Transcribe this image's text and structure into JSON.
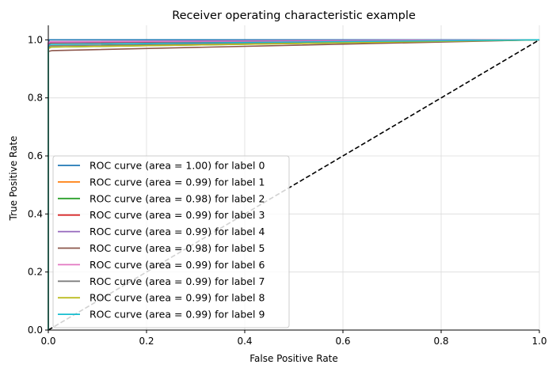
{
  "chart_data": {
    "type": "line",
    "title": "Receiver operating characteristic example",
    "xlabel": "False Positive Rate",
    "ylabel": "True Positive Rate",
    "xlim": [
      0.0,
      1.0
    ],
    "ylim": [
      0.0,
      1.05
    ],
    "xticks": [
      0.0,
      0.2,
      0.4,
      0.6,
      0.8,
      1.0
    ],
    "yticks": [
      0.0,
      0.2,
      0.4,
      0.6,
      0.8,
      1.0
    ],
    "xtick_labels": [
      "0.0",
      "0.2",
      "0.4",
      "0.6",
      "0.8",
      "1.0"
    ],
    "ytick_labels": [
      "0.0",
      "0.2",
      "0.4",
      "0.6",
      "0.8",
      "1.0"
    ],
    "grid": true,
    "legend_position": "lower-left",
    "diagonal": {
      "x": [
        0,
        1
      ],
      "y": [
        0,
        1
      ],
      "color": "#000000",
      "style": "dashed"
    },
    "series": [
      {
        "name": "ROC curve (area = 1.00) for label 0",
        "color": "#1f77b4",
        "x": [
          0,
          0,
          0.002,
          1
        ],
        "y": [
          0,
          0.99,
          1.0,
          1.0
        ]
      },
      {
        "name": "ROC curve (area = 0.99) for label 1",
        "color": "#ff7f0e",
        "x": [
          0,
          0,
          0.005,
          1
        ],
        "y": [
          0,
          0.985,
          0.99,
          1.0
        ]
      },
      {
        "name": "ROC curve (area = 0.98) for label 2",
        "color": "#2ca02c",
        "x": [
          0,
          0,
          0.006,
          1
        ],
        "y": [
          0,
          0.97,
          0.975,
          1.0
        ]
      },
      {
        "name": "ROC curve (area = 0.99) for label 3",
        "color": "#d62728",
        "x": [
          0,
          0,
          0.005,
          1
        ],
        "y": [
          0,
          0.985,
          0.99,
          1.0
        ]
      },
      {
        "name": "ROC curve (area = 0.99) for label 4",
        "color": "#9467bd",
        "x": [
          0,
          0,
          0.005,
          1
        ],
        "y": [
          0,
          0.988,
          0.992,
          1.0
        ]
      },
      {
        "name": "ROC curve (area = 0.98) for label 5",
        "color": "#8c564b",
        "x": [
          0,
          0,
          0.008,
          1
        ],
        "y": [
          0,
          0.96,
          0.963,
          1.0
        ]
      },
      {
        "name": "ROC curve (area = 0.99) for label 6",
        "color": "#e377c2",
        "x": [
          0,
          0,
          0.004,
          1
        ],
        "y": [
          0,
          0.99,
          0.994,
          1.0
        ]
      },
      {
        "name": "ROC curve (area = 0.99) for label 7",
        "color": "#7f7f7f",
        "x": [
          0,
          0,
          0.005,
          1
        ],
        "y": [
          0,
          0.975,
          0.98,
          1.0
        ]
      },
      {
        "name": "ROC curve (area = 0.99) for label 8",
        "color": "#bcbd22",
        "x": [
          0,
          0,
          0.006,
          1
        ],
        "y": [
          0,
          0.97,
          0.975,
          1.0
        ]
      },
      {
        "name": "ROC curve (area = 0.99) for label 9",
        "color": "#17becf",
        "x": [
          0,
          0,
          0.005,
          1
        ],
        "y": [
          0,
          0.98,
          0.985,
          1.0
        ]
      }
    ]
  }
}
